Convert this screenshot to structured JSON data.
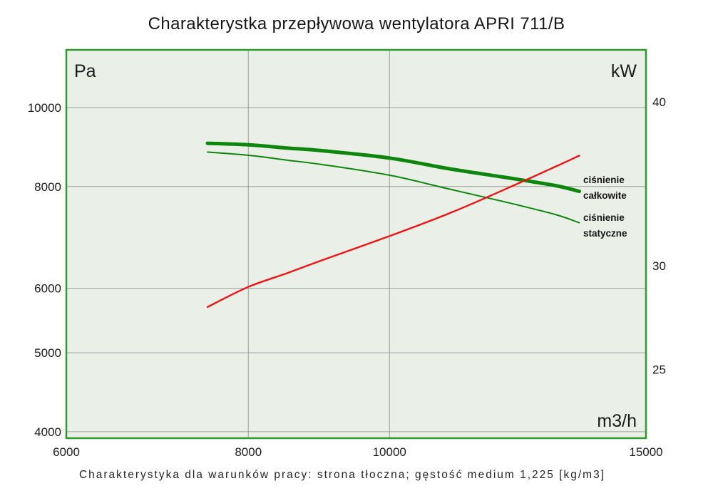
{
  "title": "Charakterystka przepływowa wentylatora APRI 711/B",
  "caption": "Charakterystyka dla warunków pracy: strona tłoczna; gęstość medium 1,225 [kg/m3]",
  "colors": {
    "curve_green": "#0E860E",
    "curve_red": "#EE1414",
    "plot_bg": "#EAEFE8",
    "plot_border": "#2D9C2D",
    "gridline": "#9C9C9C",
    "text": "#1C1C1C"
  },
  "chart_data": {
    "type": "line",
    "title": "Charakterystka przepływowa wentylatora APRI 711/B",
    "subtitle": "Charakterystyka dla warunków pracy: strona tłoczna; gęstość medium 1,225 [kg/m3]",
    "grid": true,
    "x_axis": {
      "unit_label": "m3/h",
      "scale": "log",
      "range": [
        6000,
        15000
      ],
      "tick_labels": [
        "6000",
        "8000",
        "10000",
        "15000"
      ],
      "tick_values": [
        6000,
        8000,
        10000,
        15000
      ],
      "gridline_values": [
        8000,
        10000
      ]
    },
    "y_axis_left": {
      "unit_label": "Pa",
      "scale": "log",
      "tick_labels": [
        "10000",
        "8000",
        "6000",
        "5000",
        "4000"
      ],
      "tick_values": [
        10000,
        8000,
        6000,
        5000,
        4000
      ],
      "gridline_values": [
        10000,
        8000,
        6000,
        5000,
        4000
      ]
    },
    "y_axis_right": {
      "unit_label": "kW",
      "scale": "log",
      "tick_labels": [
        "40",
        "30",
        "25"
      ],
      "tick_values": [
        40,
        30,
        25
      ]
    },
    "x": [
      7500,
      8000,
      8500,
      9000,
      10000,
      11000,
      12000,
      13000,
      13500
    ],
    "series": [
      {
        "id": "cisnienie-calkowite",
        "label_lines": [
          "ciśnienie",
          "całkowite"
        ],
        "axis": "left",
        "unit": "Pa",
        "color": "#0E860E",
        "stroke_width": 5,
        "values": [
          9040,
          9000,
          8920,
          8850,
          8670,
          8410,
          8210,
          8020,
          7890
        ]
      },
      {
        "id": "cisnienie-statyczne",
        "label_lines": [
          "ciśnienie",
          "statyczne"
        ],
        "axis": "left",
        "unit": "Pa",
        "color": "#0E860E",
        "stroke_width": 2,
        "values": [
          8820,
          8740,
          8620,
          8510,
          8260,
          7940,
          7660,
          7390,
          7220
        ]
      },
      {
        "id": "power-curve",
        "label_lines": [],
        "axis": "right",
        "unit": "kW",
        "color": "#EE1414",
        "stroke_width": 2.4,
        "values": [
          27.9,
          28.9,
          29.6,
          30.3,
          31.6,
          32.9,
          34.3,
          35.7,
          36.4
        ]
      }
    ]
  }
}
